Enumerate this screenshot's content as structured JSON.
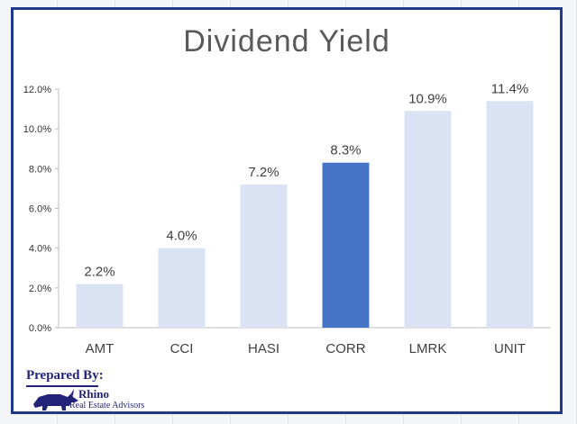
{
  "chart_data": {
    "type": "bar",
    "title": "Dividend Yield",
    "categories": [
      "AMT",
      "CCI",
      "HASI",
      "CORR",
      "LMRK",
      "UNIT"
    ],
    "values": [
      2.2,
      4.0,
      7.2,
      8.3,
      10.9,
      11.4
    ],
    "data_labels": [
      "2.2%",
      "4.0%",
      "7.2%",
      "8.3%",
      "10.9%",
      "11.4%"
    ],
    "highlight_index": 3,
    "ylim": [
      0,
      12
    ],
    "yticks": [
      0,
      2,
      4,
      6,
      8,
      10,
      12
    ],
    "ytick_labels": [
      "0.0%",
      "2.0%",
      "4.0%",
      "6.0%",
      "8.0%",
      "10.0%",
      "12.0%"
    ],
    "xlabel": "",
    "ylabel": "",
    "grid": false,
    "colors": {
      "bar": "#dae3f3",
      "highlight": "#4472c4",
      "axis": "#bfbfbf"
    }
  },
  "logo": {
    "prepared_by": "Prepared By:",
    "name": "Rhino",
    "subtitle": "Real Estate Advisors",
    "color": "#23237a"
  }
}
